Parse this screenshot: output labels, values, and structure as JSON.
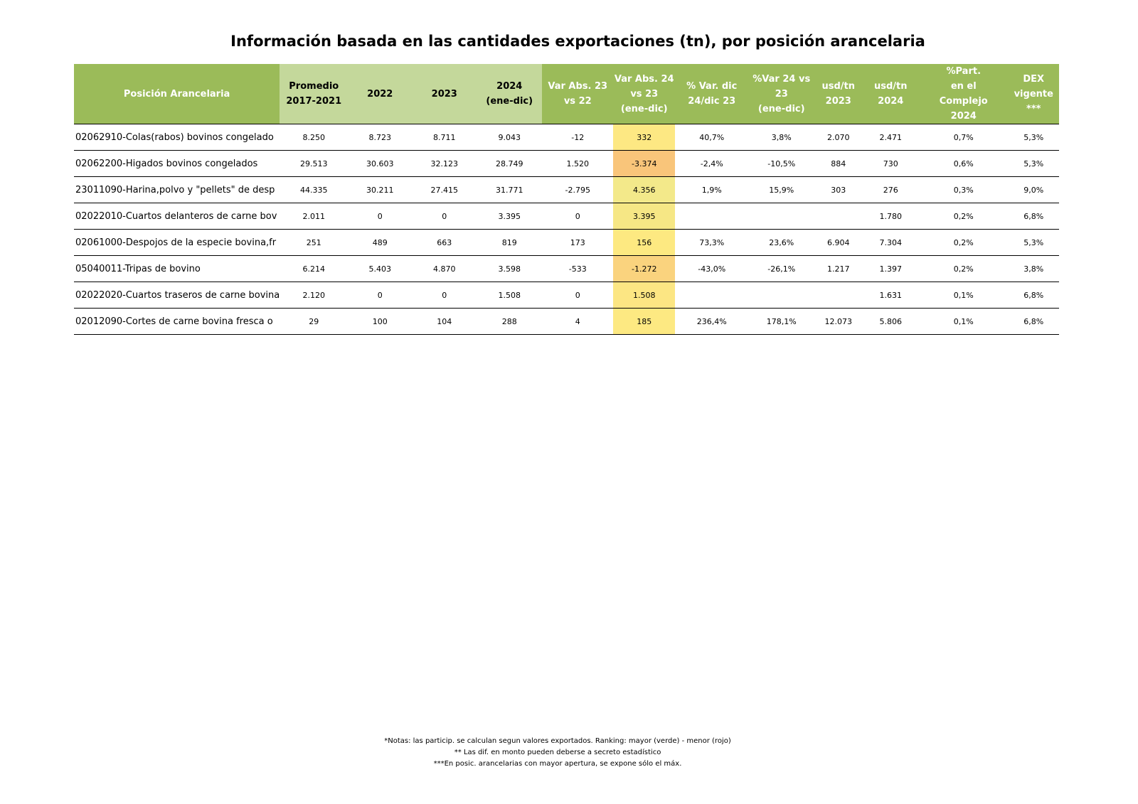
{
  "title": "Información basada en las cantidades exportaciones (tn), por posición arancelaria",
  "table": {
    "header": [
      [
        "Posición Arancelaria"
      ],
      [
        "Promedio",
        "2017-2021"
      ],
      [
        "2022"
      ],
      [
        "2023"
      ],
      [
        "2024",
        "(ene-dic)"
      ],
      [
        "Var Abs. 23",
        "vs 22"
      ],
      [
        "Var Abs. 24",
        "vs 23",
        "(ene-dic)"
      ],
      [
        "% Var. dic",
        "24/dic 23"
      ],
      [
        "%Var 24 vs 23",
        "(ene-dic)"
      ],
      [
        "usd/tn",
        "2023"
      ],
      [
        "usd/tn",
        "2024"
      ],
      [
        "%Part.",
        "en el",
        "Complejo",
        "2024"
      ],
      [
        "DEX",
        "vigente",
        "***"
      ]
    ],
    "rows": [
      [
        "02062910-Colas(rabos) bovinos congelado",
        "8.250",
        "8.723",
        "8.711",
        "9.043",
        "-12",
        "332",
        "40,7%",
        "3,8%",
        "2.070",
        "2.471",
        "0,7%",
        "5,3%"
      ],
      [
        "02062200-Higados bovinos congelados",
        "29.513",
        "30.603",
        "32.123",
        "28.749",
        "1.520",
        "-3.374",
        "-2,4%",
        "-10,5%",
        "884",
        "730",
        "0,6%",
        "5,3%"
      ],
      [
        "23011090-Harina,polvo y \"pellets\" de desp",
        "44.335",
        "30.211",
        "27.415",
        "31.771",
        "-2.795",
        "4.356",
        "1,9%",
        "15,9%",
        "303",
        "276",
        "0,3%",
        "9,0%"
      ],
      [
        "02022010-Cuartos delanteros de carne bov",
        "2.011",
        "0",
        "0",
        "3.395",
        "0",
        "3.395",
        null,
        null,
        null,
        "1.780",
        "0,2%",
        "6,8%"
      ],
      [
        "02061000-Despojos de la especie bovina,fr",
        "251",
        "489",
        "663",
        "819",
        "173",
        "156",
        "73,3%",
        "23,6%",
        "6.904",
        "7.304",
        "0,2%",
        "5,3%"
      ],
      [
        "05040011-Tripas de bovino",
        "6.214",
        "5.403",
        "4.870",
        "3.598",
        "-533",
        "-1.272",
        "-43,0%",
        "-26,1%",
        "1.217",
        "1.397",
        "0,2%",
        "3,8%"
      ],
      [
        "02022020-Cuartos traseros de carne bovina",
        "2.120",
        "0",
        "0",
        "1.508",
        "0",
        "1.508",
        null,
        null,
        null,
        "1.631",
        "0,1%",
        "6,8%"
      ],
      [
        "02012090-Cortes de carne bovina fresca o",
        "29",
        "100",
        "104",
        "288",
        "4",
        "185",
        "236,4%",
        "178,1%",
        "12.073",
        "5.806",
        "0,1%",
        "6,8%"
      ]
    ]
  },
  "notes": [
    "*Notas: las particip. se calculan segun valores exportados. Ranking: mayor (verde) - menor (rojo)",
    "** Las dif. en monto pueden deberse a secreto estadístico",
    "***En posic. arancelarias con mayor apertura, se expone sólo el máx."
  ]
}
